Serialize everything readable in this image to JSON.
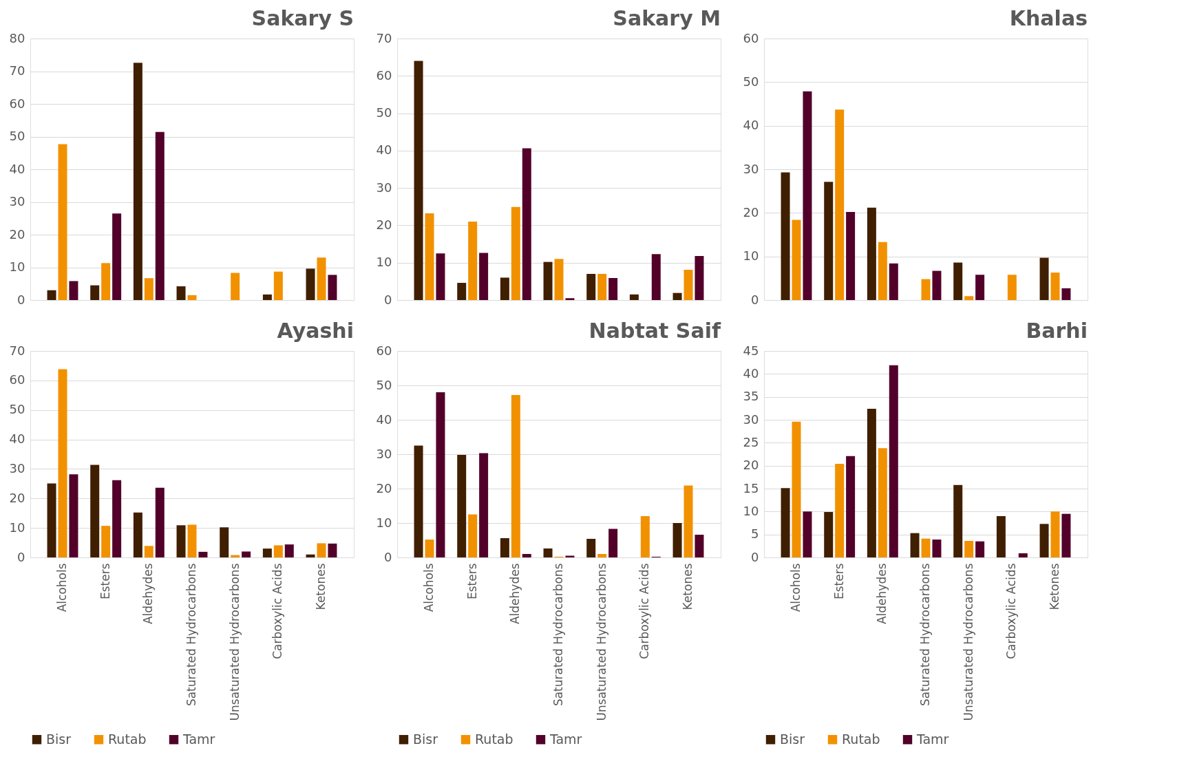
{
  "chart_data": [
    {
      "type": "bar",
      "title": "Sakary S",
      "categories": [
        null,
        null,
        null,
        null,
        null,
        null,
        null
      ],
      "ylim": [
        0,
        80
      ],
      "yticks": [
        0,
        10,
        20,
        30,
        40,
        50,
        60,
        70,
        80
      ],
      "grid": "y",
      "legend": false,
      "tick_labels": "y",
      "series": [
        {
          "name": "Bisr",
          "color": "#401e00",
          "values": [
            3.0,
            4.5,
            72.6,
            4.2,
            0,
            1.7,
            9.6
          ]
        },
        {
          "name": "Rutab",
          "color": "#f29100",
          "values": [
            47.7,
            11.3,
            6.7,
            1.5,
            8.3,
            8.7,
            13.0
          ]
        },
        {
          "name": "Tamr",
          "color": "#52002a",
          "values": [
            5.8,
            26.5,
            51.4,
            0,
            0,
            0,
            7.7
          ]
        }
      ]
    },
    {
      "type": "bar",
      "title": "Sakary M",
      "categories": [
        null,
        null,
        null,
        null,
        null,
        null,
        null
      ],
      "ylim": [
        0,
        70
      ],
      "yticks": [
        0,
        10,
        20,
        30,
        40,
        50,
        60,
        70
      ],
      "grid": "y",
      "legend": false,
      "tick_labels": "y",
      "series": [
        {
          "name": "Bisr",
          "color": "#401e00",
          "values": [
            64.0,
            4.6,
            6.0,
            10.2,
            7.0,
            1.5,
            1.9
          ]
        },
        {
          "name": "Rutab",
          "color": "#f29100",
          "values": [
            23.2,
            21.0,
            24.9,
            11.0,
            7.0,
            0,
            8.1
          ]
        },
        {
          "name": "Tamr",
          "color": "#52002a",
          "values": [
            12.5,
            12.6,
            40.6,
            0.5,
            5.9,
            12.3,
            11.8
          ]
        }
      ]
    },
    {
      "type": "bar",
      "title": "Khalas",
      "categories": [
        null,
        null,
        null,
        null,
        null,
        null,
        null
      ],
      "ylim": [
        0,
        60
      ],
      "yticks": [
        0,
        10,
        20,
        30,
        40,
        50,
        60
      ],
      "grid": "y",
      "legend": false,
      "tick_labels": "y",
      "series": [
        {
          "name": "Bisr",
          "color": "#401e00",
          "values": [
            29.3,
            27.1,
            21.2,
            0,
            8.6,
            0,
            9.7
          ]
        },
        {
          "name": "Rutab",
          "color": "#f29100",
          "values": [
            18.4,
            43.7,
            13.3,
            4.8,
            0.9,
            5.8,
            6.3
          ]
        },
        {
          "name": "Tamr",
          "color": "#52002a",
          "values": [
            47.9,
            20.2,
            8.4,
            6.7,
            5.8,
            0,
            2.7
          ]
        }
      ]
    },
    {
      "type": "bar",
      "title": "Ayashi",
      "categories": [
        "Alcohols",
        "Esters",
        "Aldehydes",
        "Saturated Hydrocarbons",
        "Unsaturated Hydrocarbons",
        "Carboxylic Acids",
        "Ketones"
      ],
      "ylim": [
        0,
        70
      ],
      "yticks": [
        0,
        10,
        20,
        30,
        40,
        50,
        60,
        70
      ],
      "grid": "y",
      "legend": "bottom",
      "series": [
        {
          "name": "Bisr",
          "color": "#401e00",
          "values": [
            25.1,
            31.4,
            15.2,
            10.9,
            10.2,
            3.0,
            1.0
          ]
        },
        {
          "name": "Rutab",
          "color": "#f29100",
          "values": [
            63.8,
            10.7,
            3.9,
            11.1,
            0.8,
            4.1,
            4.8
          ]
        },
        {
          "name": "Tamr",
          "color": "#52002a",
          "values": [
            28.2,
            26.2,
            23.6,
            1.9,
            2.0,
            4.4,
            4.7
          ]
        }
      ]
    },
    {
      "type": "bar",
      "title": "Nabtat Saif",
      "categories": [
        "Alcohols",
        "Esters",
        "Aldehydes",
        "Saturated Hydrocarbons",
        "Unsaturated Hydrocarbons",
        "Carboxylic Acids",
        "Ketones"
      ],
      "ylim": [
        0,
        60
      ],
      "yticks": [
        0,
        10,
        20,
        30,
        40,
        50,
        60
      ],
      "grid": "y",
      "legend": "bottom",
      "series": [
        {
          "name": "Bisr",
          "color": "#401e00",
          "values": [
            32.5,
            29.8,
            5.6,
            2.6,
            5.4,
            0,
            10.0
          ]
        },
        {
          "name": "Rutab",
          "color": "#f29100",
          "values": [
            5.2,
            12.5,
            47.2,
            0.2,
            1.0,
            12.0,
            20.9
          ]
        },
        {
          "name": "Tamr",
          "color": "#52002a",
          "values": [
            48.0,
            30.3,
            1.0,
            0.5,
            8.3,
            0.2,
            6.6
          ]
        }
      ]
    },
    {
      "type": "bar",
      "title": "Barhi",
      "categories": [
        "Alcohols",
        "Esters",
        "Aldehydes",
        "Saturated Hydrocarbons",
        "Unsaturated Hydrocarbons",
        "Carboxylic Acids",
        "Ketones"
      ],
      "ylim": [
        0,
        45
      ],
      "yticks": [
        0,
        5,
        10,
        15,
        20,
        25,
        30,
        35,
        40,
        45
      ],
      "grid": "y",
      "legend": "bottom",
      "series": [
        {
          "name": "Bisr",
          "color": "#401e00",
          "values": [
            15.1,
            9.9,
            32.4,
            5.3,
            15.8,
            9.0,
            7.3
          ]
        },
        {
          "name": "Rutab",
          "color": "#f29100",
          "values": [
            29.6,
            20.4,
            23.8,
            4.1,
            3.6,
            0,
            10.0
          ]
        },
        {
          "name": "Tamr",
          "color": "#52002a",
          "values": [
            10.0,
            22.1,
            41.9,
            3.9,
            3.5,
            0.9,
            9.5
          ]
        }
      ]
    }
  ]
}
